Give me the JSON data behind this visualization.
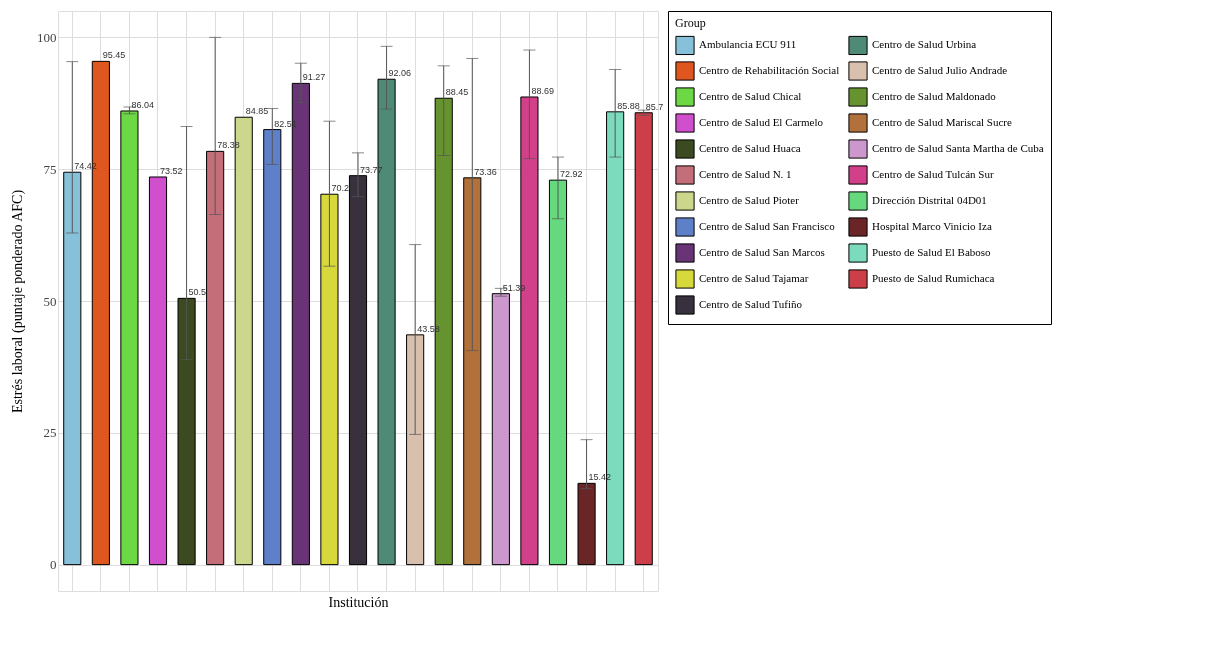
{
  "chart_data": {
    "type": "bar",
    "xlabel": "Institución",
    "ylabel": "Estrés laboral (puntaje ponderado  AFC)",
    "legend_title": "Group",
    "categories": [
      null,
      null,
      null,
      null,
      null,
      null,
      null,
      null,
      null,
      null,
      null,
      null,
      null,
      null,
      null,
      null,
      null,
      null,
      null,
      null,
      null
    ],
    "series": [
      {
        "name": "Ambulancia ECU 911",
        "color": "#86c0d9",
        "values": [
          74.42,
          null,
          null,
          null,
          null,
          null,
          null,
          null,
          null,
          null,
          null,
          null,
          null,
          null,
          null,
          null,
          null,
          null,
          null,
          null,
          null
        ],
        "errors": [
          [
            62.9,
            95.4
          ],
          null,
          null,
          null,
          null,
          null,
          null,
          null,
          null,
          null,
          null,
          null,
          null,
          null,
          null,
          null,
          null,
          null,
          null,
          null,
          null
        ]
      },
      {
        "name": "Centro de Rehabilitación Social",
        "color": "#e0561f",
        "values": [
          null,
          95.45,
          null,
          null,
          null,
          null,
          null,
          null,
          null,
          null,
          null,
          null,
          null,
          null,
          null,
          null,
          null,
          null,
          null,
          null,
          null
        ]
      },
      {
        "name": "Centro de Salud  Chical",
        "color": "#6cd843",
        "values": [
          null,
          null,
          86.04,
          null,
          null,
          null,
          null,
          null,
          null,
          null,
          null,
          null,
          null,
          null,
          null,
          null,
          null,
          null,
          null,
          null,
          null
        ],
        "errors": [
          null,
          null,
          [
            85.5,
            86.8
          ],
          null,
          null,
          null,
          null,
          null,
          null,
          null,
          null,
          null,
          null,
          null,
          null,
          null,
          null,
          null,
          null,
          null,
          null
        ]
      },
      {
        "name": "Centro de Salud  El Carmelo",
        "color": "#cf4fcc",
        "values": [
          null,
          null,
          null,
          73.52,
          null,
          null,
          null,
          null,
          null,
          null,
          null,
          null,
          null,
          null,
          null,
          null,
          null,
          null,
          null,
          null,
          null
        ]
      },
      {
        "name": "Centro de Salud  Huaca",
        "color": "#3c4a21",
        "values": [
          null,
          null,
          null,
          null,
          50.5,
          null,
          null,
          null,
          null,
          null,
          null,
          null,
          null,
          null,
          null,
          null,
          null,
          null,
          null,
          null,
          null
        ],
        "errors": [
          null,
          null,
          null,
          null,
          [
            38.9,
            83.1
          ],
          null,
          null,
          null,
          null,
          null,
          null,
          null,
          null,
          null,
          null,
          null,
          null,
          null,
          null,
          null,
          null
        ]
      },
      {
        "name": "Centro de Salud  N. 1",
        "color": "#c46e7a",
        "values": [
          null,
          null,
          null,
          null,
          null,
          78.38,
          null,
          null,
          null,
          null,
          null,
          null,
          null,
          null,
          null,
          null,
          null,
          null,
          null,
          null,
          null
        ],
        "errors": [
          null,
          null,
          null,
          null,
          null,
          [
            66.4,
            100
          ],
          null,
          null,
          null,
          null,
          null,
          null,
          null,
          null,
          null,
          null,
          null,
          null,
          null,
          null,
          null
        ]
      },
      {
        "name": "Centro de Salud  Pioter",
        "color": "#cdd78c",
        "values": [
          null,
          null,
          null,
          null,
          null,
          null,
          84.85,
          null,
          null,
          null,
          null,
          null,
          null,
          null,
          null,
          null,
          null,
          null,
          null,
          null,
          null
        ]
      },
      {
        "name": "Centro de Salud  San Francisco",
        "color": "#5e80c9",
        "values": [
          null,
          null,
          null,
          null,
          null,
          null,
          null,
          82.51,
          null,
          null,
          null,
          null,
          null,
          null,
          null,
          null,
          null,
          null,
          null,
          null,
          null
        ],
        "errors": [
          null,
          null,
          null,
          null,
          null,
          null,
          null,
          [
            75.9,
            86.5
          ],
          null,
          null,
          null,
          null,
          null,
          null,
          null,
          null,
          null,
          null,
          null,
          null,
          null
        ]
      },
      {
        "name": "Centro de Salud  San Marcos",
        "color": "#693475",
        "values": [
          null,
          null,
          null,
          null,
          null,
          null,
          null,
          null,
          91.27,
          null,
          null,
          null,
          null,
          null,
          null,
          null,
          null,
          null,
          null,
          null,
          null
        ],
        "errors": [
          null,
          null,
          null,
          null,
          null,
          null,
          null,
          null,
          [
            87.6,
            95.1
          ],
          null,
          null,
          null,
          null,
          null,
          null,
          null,
          null,
          null,
          null,
          null,
          null
        ]
      },
      {
        "name": "Centro de Salud  Tajamar",
        "color": "#d6d83c",
        "values": [
          null,
          null,
          null,
          null,
          null,
          null,
          null,
          null,
          null,
          70.25,
          null,
          null,
          null,
          null,
          null,
          null,
          null,
          null,
          null,
          null,
          null
        ],
        "errors": [
          null,
          null,
          null,
          null,
          null,
          null,
          null,
          null,
          null,
          [
            56.6,
            84.1
          ],
          null,
          null,
          null,
          null,
          null,
          null,
          null,
          null,
          null,
          null,
          null
        ]
      },
      {
        "name": "Centro de Salud  Tufiño",
        "color": "#38313d",
        "values": [
          null,
          null,
          null,
          null,
          null,
          null,
          null,
          null,
          null,
          null,
          73.77,
          null,
          null,
          null,
          null,
          null,
          null,
          null,
          null,
          null,
          null
        ],
        "errors": [
          null,
          null,
          null,
          null,
          null,
          null,
          null,
          null,
          null,
          null,
          [
            69.8,
            78.1
          ],
          null,
          null,
          null,
          null,
          null,
          null,
          null,
          null,
          null,
          null
        ]
      },
      {
        "name": "Centro de Salud  Urbina",
        "color": "#4f8a77",
        "values": [
          null,
          null,
          null,
          null,
          null,
          null,
          null,
          null,
          null,
          null,
          null,
          92.06,
          null,
          null,
          null,
          null,
          null,
          null,
          null,
          null,
          null
        ],
        "errors": [
          null,
          null,
          null,
          null,
          null,
          null,
          null,
          null,
          null,
          null,
          null,
          [
            86.4,
            98.3
          ],
          null,
          null,
          null,
          null,
          null,
          null,
          null,
          null,
          null
        ]
      },
      {
        "name": "Centro de Salud Julio Andrade",
        "color": "#d9c0ae",
        "values": [
          null,
          null,
          null,
          null,
          null,
          null,
          null,
          null,
          null,
          null,
          null,
          null,
          43.58,
          null,
          null,
          null,
          null,
          null,
          null,
          null,
          null
        ],
        "errors": [
          null,
          null,
          null,
          null,
          null,
          null,
          null,
          null,
          null,
          null,
          null,
          null,
          [
            24.7,
            60.7
          ],
          null,
          null,
          null,
          null,
          null,
          null,
          null,
          null
        ]
      },
      {
        "name": "Centro de Salud Maldonado",
        "color": "#66922f",
        "values": [
          null,
          null,
          null,
          null,
          null,
          null,
          null,
          null,
          null,
          null,
          null,
          null,
          null,
          88.45,
          null,
          null,
          null,
          null,
          null,
          null,
          null
        ],
        "errors": [
          null,
          null,
          null,
          null,
          null,
          null,
          null,
          null,
          null,
          null,
          null,
          null,
          null,
          [
            77.6,
            94.6
          ],
          null,
          null,
          null,
          null,
          null,
          null,
          null
        ]
      },
      {
        "name": "Centro de Salud Mariscal Sucre",
        "color": "#b2713b",
        "values": [
          null,
          null,
          null,
          null,
          null,
          null,
          null,
          null,
          null,
          null,
          null,
          null,
          null,
          null,
          73.36,
          null,
          null,
          null,
          null,
          null,
          null
        ],
        "errors": [
          null,
          null,
          null,
          null,
          null,
          null,
          null,
          null,
          null,
          null,
          null,
          null,
          null,
          null,
          [
            40.6,
            96.0
          ],
          null,
          null,
          null,
          null,
          null,
          null
        ]
      },
      {
        "name": "Centro de Salud Santa Martha de Cuba",
        "color": "#cc97cc",
        "values": [
          null,
          null,
          null,
          null,
          null,
          null,
          null,
          null,
          null,
          null,
          null,
          null,
          null,
          null,
          null,
          51.39,
          null,
          null,
          null,
          null,
          null
        ],
        "errors": [
          null,
          null,
          null,
          null,
          null,
          null,
          null,
          null,
          null,
          null,
          null,
          null,
          null,
          null,
          null,
          [
            50.9,
            52.4
          ],
          null,
          null,
          null,
          null,
          null
        ]
      },
      {
        "name": "Centro de Salud Tulcán Sur",
        "color": "#d3408a",
        "values": [
          null,
          null,
          null,
          null,
          null,
          null,
          null,
          null,
          null,
          null,
          null,
          null,
          null,
          null,
          null,
          null,
          88.69,
          null,
          null,
          null,
          null
        ],
        "errors": [
          null,
          null,
          null,
          null,
          null,
          null,
          null,
          null,
          null,
          null,
          null,
          null,
          null,
          null,
          null,
          null,
          [
            77.0,
            97.6
          ],
          null,
          null,
          null,
          null
        ]
      },
      {
        "name": "Dirección Distrital 04D01",
        "color": "#66d97f",
        "values": [
          null,
          null,
          null,
          null,
          null,
          null,
          null,
          null,
          null,
          null,
          null,
          null,
          null,
          null,
          null,
          null,
          null,
          72.92,
          null,
          null,
          null
        ],
        "errors": [
          null,
          null,
          null,
          null,
          null,
          null,
          null,
          null,
          null,
          null,
          null,
          null,
          null,
          null,
          null,
          null,
          null,
          [
            65.6,
            77.3
          ],
          null,
          null,
          null
        ]
      },
      {
        "name": "Hospital Marco Vinicio Iza",
        "color": "#6a2626",
        "values": [
          null,
          null,
          null,
          null,
          null,
          null,
          null,
          null,
          null,
          null,
          null,
          null,
          null,
          null,
          null,
          null,
          null,
          null,
          15.42,
          null,
          null
        ],
        "errors": [
          null,
          null,
          null,
          null,
          null,
          null,
          null,
          null,
          null,
          null,
          null,
          null,
          null,
          null,
          null,
          null,
          null,
          null,
          [
            14.4,
            23.7
          ],
          null,
          null
        ]
      },
      {
        "name": "Puesto de Salud  El Baboso",
        "color": "#7cdbbd",
        "values": [
          null,
          null,
          null,
          null,
          null,
          null,
          null,
          null,
          null,
          null,
          null,
          null,
          null,
          null,
          null,
          null,
          null,
          null,
          null,
          85.88,
          null
        ],
        "errors": [
          null,
          null,
          null,
          null,
          null,
          null,
          null,
          null,
          null,
          null,
          null,
          null,
          null,
          null,
          null,
          null,
          null,
          null,
          null,
          [
            77.3,
            93.9
          ],
          null
        ]
      },
      {
        "name": "Puesto de Salud Rumichaca",
        "color": "#cc3f48",
        "values": [
          null,
          null,
          null,
          null,
          null,
          null,
          null,
          null,
          null,
          null,
          null,
          null,
          null,
          null,
          null,
          null,
          null,
          null,
          null,
          null,
          85.7
        ],
        "errors": [
          null,
          null,
          null,
          null,
          null,
          null,
          null,
          null,
          null,
          null,
          null,
          null,
          null,
          null,
          null,
          null,
          null,
          null,
          null,
          null,
          [
            85.2,
            86.2
          ]
        ]
      }
    ],
    "ylim": [
      -5,
      105
    ],
    "yticks": [
      0,
      25,
      50,
      75,
      100
    ],
    "grid": true,
    "data_labels": true,
    "legend": "right",
    "tick_labels": "y"
  }
}
